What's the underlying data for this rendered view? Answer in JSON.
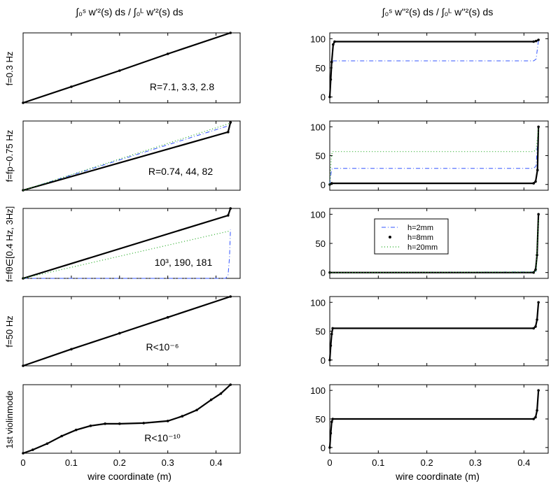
{
  "figure": {
    "col_titles": [
      "∫₀ˢ w'²(s) ds / ∫₀ᴸ w'²(s) ds",
      "∫₀ˢ w''²(s) ds / ∫₀ᴸ w''²(s) ds"
    ],
    "xlabel": "wire coordinate (m)",
    "x_ticks": [
      "0",
      "0.1",
      "0.2",
      "0.3",
      "0.4"
    ],
    "y_ticks": [
      "0",
      "50",
      "100"
    ],
    "row_labels": [
      "f=0.3 Hz",
      "f=fp~0.75 Hz",
      "f=fθ∈[0.4 Hz, 3Hz]",
      "f=50 Hz",
      "1st violinmode"
    ],
    "annotations": [
      "R=7.1, 3.3, 2.8",
      "R=0.74, 44, 82",
      "10³, 190, 181",
      "R<10⁻⁶",
      "R<10⁻¹⁰"
    ],
    "legend": [
      "h=2mm",
      "h=8mm",
      "h=20mm"
    ],
    "colors": {
      "h2": "#3355ff",
      "h8": "#000000",
      "h20": "#22aa22"
    }
  },
  "chart_data": [
    {
      "type": "line",
      "row": 0,
      "col": 0,
      "xlim": [
        0,
        0.45
      ],
      "ylim": [
        0,
        1
      ],
      "series": [
        {
          "name": "h=8mm",
          "style": "dots",
          "x": [
            0,
            0.1,
            0.2,
            0.3,
            0.43
          ],
          "y": [
            0,
            0.23,
            0.46,
            0.7,
            1.0
          ]
        }
      ]
    },
    {
      "type": "line",
      "row": 0,
      "col": 1,
      "xlim": [
        0,
        0.45
      ],
      "ylim": [
        -10,
        110
      ],
      "series": [
        {
          "name": "h=2mm",
          "style": "dashdot",
          "x": [
            0,
            0.003,
            0.006,
            0.42,
            0.425,
            0.43
          ],
          "y": [
            0,
            50,
            62,
            62,
            65,
            97
          ]
        },
        {
          "name": "h=8mm",
          "style": "dots",
          "x": [
            0,
            0.002,
            0.004,
            0.007,
            0.01,
            0.42,
            0.425,
            0.43
          ],
          "y": [
            0,
            30,
            60,
            90,
            95,
            95,
            96,
            98
          ]
        }
      ]
    },
    {
      "type": "line",
      "row": 1,
      "col": 0,
      "xlim": [
        0,
        0.45
      ],
      "ylim": [
        0,
        1
      ],
      "series": [
        {
          "name": "h=2mm",
          "style": "dashdot",
          "x": [
            0,
            0.43
          ],
          "y": [
            0,
            0.94
          ]
        },
        {
          "name": "h=8mm",
          "style": "dots",
          "x": [
            0,
            0.425,
            0.43
          ],
          "y": [
            0,
            0.84,
            0.98
          ]
        },
        {
          "name": "h=20mm",
          "style": "dotted",
          "x": [
            0,
            0.43
          ],
          "y": [
            0,
            0.97
          ]
        }
      ]
    },
    {
      "type": "line",
      "row": 1,
      "col": 1,
      "xlim": [
        0,
        0.45
      ],
      "ylim": [
        -10,
        110
      ],
      "series": [
        {
          "name": "h=2mm",
          "style": "dashdot",
          "x": [
            0,
            0.003,
            0.005,
            0.42,
            0.425,
            0.43
          ],
          "y": [
            0,
            22,
            28,
            28,
            32,
            98
          ]
        },
        {
          "name": "h=8mm",
          "style": "dots",
          "x": [
            0,
            0.004,
            0.42,
            0.424,
            0.428,
            0.43
          ],
          "y": [
            0,
            2,
            2,
            5,
            25,
            100
          ]
        },
        {
          "name": "h=20mm",
          "style": "dotted",
          "x": [
            0,
            0.003,
            0.005,
            0.42,
            0.425,
            0.43
          ],
          "y": [
            0,
            45,
            57,
            57,
            60,
            97
          ]
        }
      ]
    },
    {
      "type": "line",
      "row": 2,
      "col": 0,
      "xlim": [
        0,
        0.45
      ],
      "ylim": [
        0,
        1
      ],
      "series": [
        {
          "name": "h=2mm",
          "style": "dashdot",
          "x": [
            0,
            0.42,
            0.425,
            0.428,
            0.43
          ],
          "y": [
            0,
            0,
            0.05,
            0.3,
            0.7
          ]
        },
        {
          "name": "h=8mm",
          "style": "dots",
          "x": [
            0,
            0.425,
            0.43
          ],
          "y": [
            0,
            0.9,
            1.0
          ]
        },
        {
          "name": "h=20mm",
          "style": "dotted",
          "x": [
            0,
            0.43
          ],
          "y": [
            0,
            0.68
          ]
        }
      ]
    },
    {
      "type": "line",
      "row": 2,
      "col": 1,
      "xlim": [
        0,
        0.45
      ],
      "ylim": [
        -10,
        110
      ],
      "series": [
        {
          "name": "h=2mm",
          "style": "dashdot",
          "x": [
            0,
            0.425,
            0.43
          ],
          "y": [
            0,
            1,
            95
          ]
        },
        {
          "name": "h=8mm",
          "style": "dots",
          "x": [
            0,
            0.42,
            0.424,
            0.427,
            0.43
          ],
          "y": [
            0,
            0,
            5,
            30,
            100
          ]
        },
        {
          "name": "h=20mm",
          "style": "dotted",
          "x": [
            0,
            0.425,
            0.43
          ],
          "y": [
            0,
            1,
            90
          ]
        }
      ]
    },
    {
      "type": "line",
      "row": 3,
      "col": 0,
      "xlim": [
        0,
        0.45
      ],
      "ylim": [
        0,
        1
      ],
      "series": [
        {
          "name": "h=8mm",
          "style": "dots",
          "x": [
            0,
            0.1,
            0.2,
            0.3,
            0.43
          ],
          "y": [
            0,
            0.24,
            0.47,
            0.7,
            1.0
          ]
        }
      ]
    },
    {
      "type": "line",
      "row": 3,
      "col": 1,
      "xlim": [
        0,
        0.45
      ],
      "ylim": [
        -10,
        110
      ],
      "series": [
        {
          "name": "h=8mm",
          "style": "dots",
          "x": [
            0,
            0.002,
            0.004,
            0.006,
            0.42,
            0.424,
            0.427,
            0.43
          ],
          "y": [
            0,
            25,
            45,
            55,
            55,
            58,
            70,
            100
          ]
        }
      ]
    },
    {
      "type": "line",
      "row": 4,
      "col": 0,
      "xlim": [
        0,
        0.45
      ],
      "ylim": [
        0,
        1
      ],
      "series": [
        {
          "name": "h=8mm",
          "style": "dots",
          "x": [
            0,
            0.02,
            0.05,
            0.08,
            0.11,
            0.14,
            0.17,
            0.2,
            0.25,
            0.3,
            0.33,
            0.36,
            0.39,
            0.41,
            0.43
          ],
          "y": [
            0,
            0.05,
            0.14,
            0.25,
            0.34,
            0.4,
            0.43,
            0.43,
            0.44,
            0.47,
            0.54,
            0.63,
            0.78,
            0.87,
            1.0
          ]
        }
      ]
    },
    {
      "type": "line",
      "row": 4,
      "col": 1,
      "xlim": [
        0,
        0.45
      ],
      "ylim": [
        -10,
        110
      ],
      "series": [
        {
          "name": "h=8mm",
          "style": "dots",
          "x": [
            0,
            0.002,
            0.004,
            0.006,
            0.42,
            0.424,
            0.427,
            0.43
          ],
          "y": [
            0,
            25,
            45,
            50,
            50,
            53,
            65,
            100
          ]
        }
      ]
    }
  ]
}
